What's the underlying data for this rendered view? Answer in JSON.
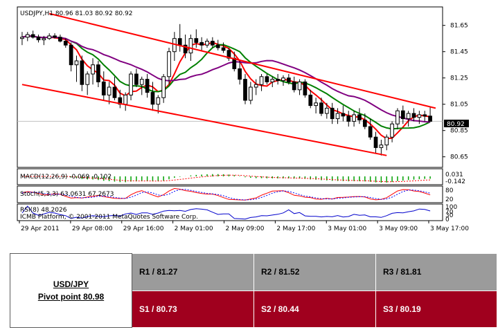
{
  "chart_data": [
    {
      "type": "candlestick",
      "symbol_header": "USDJPY,H1  80.96 81.03 80.92 80.92",
      "current_price": "80.92",
      "ylim": [
        80.58,
        81.78
      ],
      "y_ticks": [
        "81.65",
        "81.45",
        "81.25",
        "81.05",
        "80.85",
        "80.65"
      ],
      "x_ticks": [
        "29 Apr 2011",
        "29 Apr 08:00",
        "29 Apr 16:00",
        "2 May 01:00",
        "2 May 09:00",
        "2 May 17:00",
        "3 May 01:00",
        "3 May 09:00",
        "3 May 17:00"
      ],
      "candles": [
        [
          81.55,
          81.6,
          81.5,
          81.56
        ],
        [
          81.56,
          81.6,
          81.53,
          81.58
        ],
        [
          81.58,
          81.61,
          81.55,
          81.56
        ],
        [
          81.56,
          81.58,
          81.52,
          81.54
        ],
        [
          81.54,
          81.57,
          81.5,
          81.55
        ],
        [
          81.55,
          81.59,
          81.54,
          81.57
        ],
        [
          81.57,
          81.59,
          81.55,
          81.56
        ],
        [
          81.56,
          81.58,
          81.52,
          81.53
        ],
        [
          81.53,
          81.55,
          81.48,
          81.5
        ],
        [
          81.5,
          81.52,
          81.3,
          81.35
        ],
        [
          81.35,
          81.42,
          81.22,
          81.38
        ],
        [
          81.38,
          81.42,
          81.15,
          81.2
        ],
        [
          81.2,
          81.3,
          81.12,
          81.28
        ],
        [
          81.28,
          81.4,
          81.2,
          81.35
        ],
        [
          81.35,
          81.38,
          81.18,
          81.22
        ],
        [
          81.22,
          81.3,
          81.08,
          81.12
        ],
        [
          81.12,
          81.22,
          81.05,
          81.18
        ],
        [
          81.18,
          81.26,
          81.08,
          81.1
        ],
        [
          81.1,
          81.16,
          81.02,
          81.05
        ],
        [
          81.05,
          81.14,
          81.0,
          81.12
        ],
        [
          81.12,
          81.3,
          81.08,
          81.28
        ],
        [
          81.28,
          81.32,
          81.18,
          81.2
        ],
        [
          81.2,
          81.26,
          81.12,
          81.24
        ],
        [
          81.24,
          81.28,
          81.1,
          81.14
        ],
        [
          81.14,
          81.22,
          81.0,
          81.05
        ],
        [
          81.05,
          81.12,
          80.98,
          81.1
        ],
        [
          81.1,
          81.28,
          81.06,
          81.26
        ],
        [
          81.26,
          81.48,
          81.2,
          81.45
        ],
        [
          81.45,
          81.6,
          81.38,
          81.55
        ],
        [
          81.55,
          81.66,
          81.45,
          81.5
        ],
        [
          81.5,
          81.58,
          81.4,
          81.44
        ],
        [
          81.44,
          81.58,
          81.38,
          81.55
        ],
        [
          81.55,
          81.62,
          81.48,
          81.52
        ],
        [
          81.52,
          81.56,
          81.46,
          81.5
        ],
        [
          81.5,
          81.55,
          81.48,
          81.53
        ],
        [
          81.53,
          81.56,
          81.48,
          81.5
        ],
        [
          81.5,
          81.54,
          81.46,
          81.48
        ],
        [
          81.48,
          81.52,
          81.44,
          81.46
        ],
        [
          81.46,
          81.48,
          81.38,
          81.4
        ],
        [
          81.4,
          81.45,
          81.3,
          81.32
        ],
        [
          81.32,
          81.38,
          81.2,
          81.24
        ],
        [
          81.24,
          81.28,
          81.05,
          81.08
        ],
        [
          81.08,
          81.22,
          81.05,
          81.18
        ],
        [
          81.18,
          81.24,
          81.12,
          81.2
        ],
        [
          81.2,
          81.28,
          81.15,
          81.26
        ],
        [
          81.26,
          81.28,
          81.2,
          81.22
        ],
        [
          81.22,
          81.26,
          81.18,
          81.24
        ],
        [
          81.24,
          81.28,
          81.2,
          81.23
        ],
        [
          81.23,
          81.27,
          81.19,
          81.25
        ],
        [
          81.25,
          81.28,
          81.2,
          81.22
        ],
        [
          81.22,
          81.26,
          81.14,
          81.16
        ],
        [
          81.16,
          81.24,
          81.12,
          81.22
        ],
        [
          81.22,
          81.24,
          81.1,
          81.12
        ],
        [
          81.12,
          81.16,
          81.02,
          81.04
        ],
        [
          81.04,
          81.1,
          80.98,
          81.06
        ],
        [
          81.06,
          81.1,
          80.96,
          80.98
        ],
        [
          80.98,
          81.06,
          80.94,
          81.02
        ],
        [
          81.02,
          81.06,
          80.9,
          80.94
        ],
        [
          80.94,
          81.02,
          80.9,
          80.98
        ],
        [
          80.98,
          81.04,
          80.92,
          80.96
        ],
        [
          80.96,
          81.0,
          80.88,
          80.92
        ],
        [
          80.92,
          81.0,
          80.88,
          80.97
        ],
        [
          80.97,
          81.02,
          80.9,
          80.93
        ],
        [
          80.93,
          80.98,
          80.86,
          80.88
        ],
        [
          80.88,
          80.94,
          80.78,
          80.8
        ],
        [
          80.8,
          80.84,
          80.68,
          80.72
        ],
        [
          80.72,
          80.78,
          80.66,
          80.74
        ],
        [
          80.74,
          80.82,
          80.7,
          80.8
        ],
        [
          80.8,
          80.92,
          80.76,
          80.9
        ],
        [
          80.9,
          81.02,
          80.86,
          81.0
        ],
        [
          81.0,
          81.04,
          80.9,
          80.94
        ],
        [
          80.94,
          81.0,
          80.88,
          80.98
        ],
        [
          80.98,
          81.02,
          80.92,
          80.95
        ],
        [
          80.95,
          81.0,
          80.9,
          80.97
        ],
        [
          80.97,
          81.0,
          80.92,
          80.96
        ],
        [
          80.96,
          81.03,
          80.92,
          80.92
        ]
      ],
      "trend_lines": [
        {
          "color": "#ff0000",
          "points": [
            [
              5,
              81.74
            ],
            [
              76,
              81.02
            ]
          ]
        },
        {
          "color": "#ff0000",
          "points": [
            [
              0,
              81.2
            ],
            [
              67,
              80.66
            ]
          ]
        }
      ],
      "ma_periods": [
        5,
        10,
        20
      ],
      "ma_colors": [
        "#ff0000",
        "#008000",
        "#800080"
      ],
      "price_line_color": "#c0c0c0",
      "candle_up_color": "#ffffff",
      "candle_down_color": "#000000"
    },
    {
      "type": "bar",
      "label": "MACD(12,26,9) -0.069 -0.102",
      "scale_labels": [
        "0.031",
        "-0.142"
      ],
      "bar_color": "#00a000",
      "signal_color": "#ff0000"
    },
    {
      "type": "line",
      "label": "Stoch(5,3,3) 63.0631 67.2673",
      "scale_labels": [
        "80",
        "20"
      ],
      "main_color": "#ff0000",
      "signal_color": "#0000ff"
    },
    {
      "type": "line",
      "label": "RSI(8) 48.2026",
      "watermark": "ICMB Platform, © 2001-2011 MetaQuotes Software Corp.",
      "scale_labels": [
        "100",
        "70",
        "30",
        "0"
      ],
      "line_color": "#0000cc"
    }
  ],
  "pivot_table": {
    "pair": "USD/JPY",
    "pivot": "Pivot point 80.98",
    "resistance": [
      "R1 / 81.27",
      "R2 / 81.52",
      "R3 / 81.81"
    ],
    "support": [
      "S1 / 80.73",
      "S2 / 80.44",
      "S3 / 80.19"
    ]
  }
}
